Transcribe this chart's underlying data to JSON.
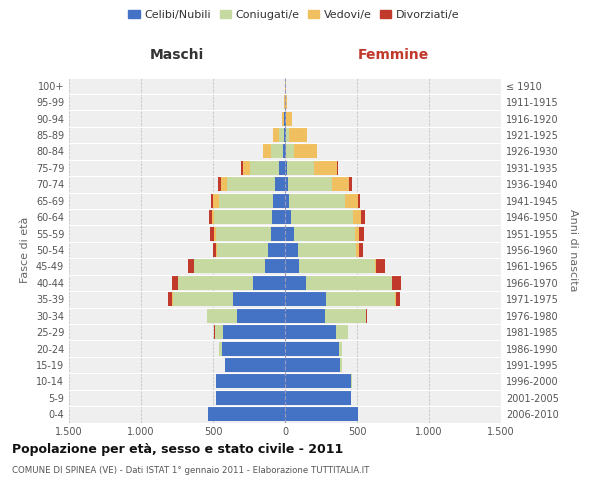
{
  "age_groups": [
    "0-4",
    "5-9",
    "10-14",
    "15-19",
    "20-24",
    "25-29",
    "30-34",
    "35-39",
    "40-44",
    "45-49",
    "50-54",
    "55-59",
    "60-64",
    "65-69",
    "70-74",
    "75-79",
    "80-84",
    "85-89",
    "90-94",
    "95-99",
    "100+"
  ],
  "birth_years": [
    "2006-2010",
    "2001-2005",
    "1996-2000",
    "1991-1995",
    "1986-1990",
    "1981-1985",
    "1976-1980",
    "1971-1975",
    "1966-1970",
    "1961-1965",
    "1956-1960",
    "1951-1955",
    "1946-1950",
    "1941-1945",
    "1936-1940",
    "1931-1935",
    "1926-1930",
    "1921-1925",
    "1916-1920",
    "1911-1915",
    "≤ 1910"
  ],
  "colors": {
    "celibi": "#4472c4",
    "coniugati": "#c5d9a0",
    "vedovi": "#f0c060",
    "divorziati": "#c0392b"
  },
  "maschi": {
    "celibi": [
      535,
      480,
      480,
      415,
      440,
      430,
      330,
      360,
      220,
      140,
      115,
      100,
      90,
      80,
      70,
      40,
      15,
      10,
      5,
      2,
      2
    ],
    "coniugati": [
      0,
      0,
      0,
      5,
      15,
      55,
      210,
      420,
      520,
      490,
      360,
      380,
      400,
      380,
      330,
      200,
      80,
      30,
      5,
      0,
      0
    ],
    "vedovi": [
      0,
      0,
      0,
      0,
      0,
      0,
      0,
      5,
      5,
      5,
      5,
      10,
      18,
      38,
      45,
      55,
      55,
      40,
      10,
      2,
      0
    ],
    "divorziati": [
      0,
      0,
      0,
      0,
      0,
      5,
      5,
      28,
      42,
      42,
      22,
      28,
      22,
      15,
      18,
      8,
      5,
      5,
      0,
      0,
      0
    ]
  },
  "femmine": {
    "celibi": [
      505,
      455,
      460,
      385,
      375,
      355,
      275,
      285,
      145,
      100,
      90,
      60,
      40,
      30,
      20,
      15,
      10,
      10,
      5,
      2,
      2
    ],
    "coniugati": [
      0,
      0,
      5,
      10,
      20,
      80,
      285,
      480,
      595,
      525,
      405,
      425,
      435,
      385,
      305,
      185,
      55,
      20,
      5,
      0,
      0
    ],
    "vedovi": [
      0,
      0,
      0,
      0,
      0,
      0,
      5,
      5,
      5,
      10,
      20,
      30,
      50,
      90,
      120,
      160,
      155,
      120,
      40,
      15,
      5
    ],
    "divorziati": [
      0,
      0,
      0,
      0,
      0,
      5,
      5,
      28,
      58,
      58,
      28,
      32,
      32,
      18,
      18,
      8,
      5,
      5,
      0,
      0,
      0
    ]
  },
  "xlim": 1500,
  "xticks": [
    -1500,
    -1000,
    -500,
    0,
    500,
    1000,
    1500
  ],
  "xtick_labels": [
    "1.500",
    "1.000",
    "500",
    "0",
    "500",
    "1.000",
    "1.500"
  ],
  "title": "Popolazione per età, sesso e stato civile - 2011",
  "subtitle": "COMUNE DI SPINEA (VE) - Dati ISTAT 1° gennaio 2011 - Elaborazione TUTTITALIA.IT",
  "ylabel_left": "Fasce di età",
  "ylabel_right": "Anni di nascita",
  "header_maschi": "Maschi",
  "header_femmine": "Femmine",
  "legend_labels": [
    "Celibi/Nubili",
    "Coniugati/e",
    "Vedovi/e",
    "Divorziati/e"
  ],
  "background_color": "#ffffff",
  "plot_bg": "#efefef",
  "grid_color": "#ffffff"
}
